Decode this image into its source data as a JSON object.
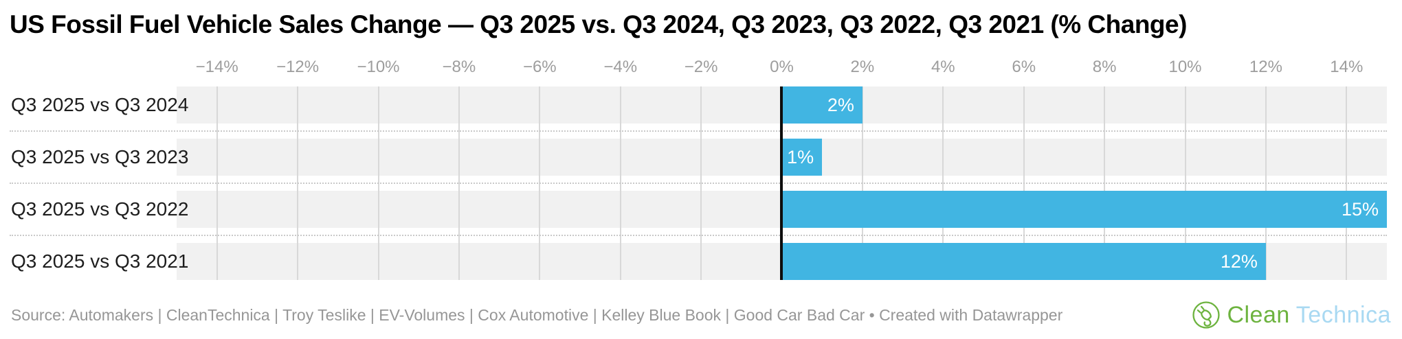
{
  "title": "US Fossil Fuel Vehicle Sales Change — Q3 2025 vs. Q3 2024, Q3 2023, Q3 2022, Q3 2021 (% Change)",
  "chart_data": {
    "type": "bar",
    "orientation": "horizontal",
    "title": "US Fossil Fuel Vehicle Sales Change — Q3 2025 vs. Q3 2024, Q3 2023, Q3 2022, Q3 2021 (% Change)",
    "categories": [
      "Q3 2025 vs Q3 2024",
      "Q3 2025 vs Q3 2023",
      "Q3 2025 vs Q3 2022",
      "Q3 2025 vs Q3 2021"
    ],
    "values": [
      2,
      1,
      15,
      12
    ],
    "value_labels": [
      "2%",
      "1%",
      "15%",
      "12%"
    ],
    "xlabel": "",
    "ylabel": "",
    "xlim": [
      -15,
      15
    ],
    "x_ticks": [
      -14,
      -12,
      -10,
      -8,
      -6,
      -4,
      -2,
      0,
      2,
      4,
      6,
      8,
      10,
      12,
      14
    ],
    "x_tick_labels": [
      "−14%",
      "−12%",
      "−10%",
      "−8%",
      "−6%",
      "−4%",
      "−2%",
      "0%",
      "2%",
      "4%",
      "6%",
      "8%",
      "10%",
      "12%",
      "14%"
    ],
    "grid": true,
    "legend": "none",
    "bar_color": "#41b5e2",
    "track_color": "#f1f1f1",
    "grid_color": "#d8d8d8",
    "zero_line_color": "#0d0d0d",
    "value_label_color": "#ffffff",
    "tick_label_color": "#9d9d9d",
    "category_label_color": "#1d1d1d"
  },
  "footer": {
    "source": "Source: Automakers | CleanTechnica | Troy Teslike | EV-Volumes | Cox Automotive | Kelley Blue Book | Good Car Bad Car • Created with Datawrapper"
  },
  "logo": {
    "word_green": "Clean",
    "word_blue": "Technica",
    "green": "#6db33f",
    "light_blue": "#a9d9f2"
  }
}
